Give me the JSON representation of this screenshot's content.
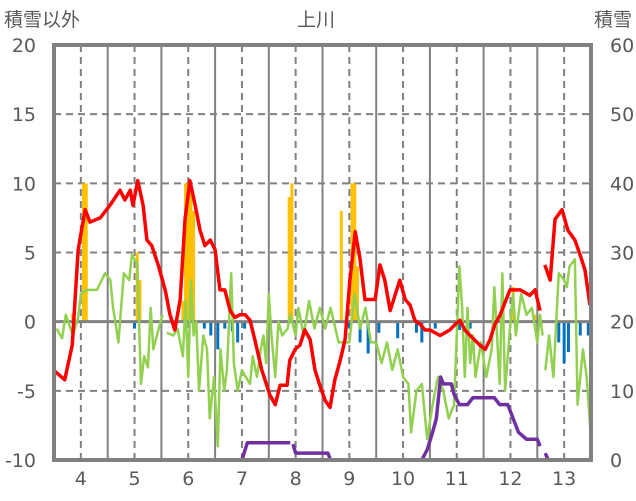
{
  "chart_data": {
    "type": "line",
    "title": "上川",
    "ylabel_left": "積雪以外",
    "ylabel_right": "積雪",
    "xlim": [
      3.5,
      13.5
    ],
    "ylim_left": [
      -10,
      20
    ],
    "ylim_right": [
      0,
      60
    ],
    "x_ticks": [
      4,
      5,
      6,
      7,
      8,
      9,
      10,
      11,
      12,
      13
    ],
    "y_ticks_left": [
      -10,
      -5,
      0,
      5,
      10,
      15,
      20
    ],
    "y_ticks_right": [
      0,
      10,
      20,
      30,
      40,
      50,
      60
    ],
    "grid": true,
    "colors": {
      "temp": "#ff0000",
      "green": "#92d050",
      "snow": "#7030a0",
      "precip": "#ffc000",
      "neg": "#0070c0",
      "axis": "#808080"
    },
    "series": [
      {
        "name": "red",
        "axis": "left",
        "segments": [
          [
            [
              3.52,
              -3.6
            ],
            [
              3.7,
              -4.2
            ],
            [
              3.84,
              -1.7
            ],
            [
              3.95,
              5.2
            ],
            [
              4.08,
              8.1
            ],
            [
              4.17,
              7.2
            ],
            [
              4.36,
              7.5
            ],
            [
              4.54,
              8.4
            ],
            [
              4.73,
              9.5
            ],
            [
              4.82,
              8.8
            ],
            [
              4.92,
              9.5
            ],
            [
              4.97,
              8.4
            ],
            [
              5.06,
              10.2
            ],
            [
              5.16,
              8.4
            ],
            [
              5.23,
              5.9
            ],
            [
              5.32,
              5.5
            ],
            [
              5.44,
              4.1
            ],
            [
              5.57,
              2.3
            ],
            [
              5.66,
              0.5
            ],
            [
              5.75,
              -0.6
            ],
            [
              5.85,
              1.6
            ],
            [
              5.94,
              7.4
            ],
            [
              6.03,
              10.2
            ],
            [
              6.13,
              8.4
            ],
            [
              6.22,
              6.6
            ],
            [
              6.31,
              5.5
            ],
            [
              6.41,
              5.9
            ],
            [
              6.5,
              5.2
            ],
            [
              6.59,
              2.3
            ],
            [
              6.68,
              2.3
            ],
            [
              6.78,
              0.8
            ],
            [
              6.87,
              0.3
            ],
            [
              6.96,
              0.5
            ],
            [
              7.06,
              0.5
            ],
            [
              7.15,
              0.1
            ],
            [
              7.24,
              -1.3
            ],
            [
              7.37,
              -3.5
            ],
            [
              7.52,
              -5.3
            ],
            [
              7.62,
              -6.0
            ],
            [
              7.71,
              -4.6
            ],
            [
              7.84,
              -4.6
            ],
            [
              7.89,
              -2.8
            ],
            [
              7.99,
              -2.0
            ],
            [
              8.08,
              -1.7
            ],
            [
              8.17,
              -0.6
            ],
            [
              8.27,
              -1.3
            ],
            [
              8.36,
              -3.5
            ],
            [
              8.45,
              -4.6
            ],
            [
              8.55,
              -5.7
            ],
            [
              8.64,
              -6.2
            ],
            [
              8.73,
              -4.2
            ],
            [
              8.83,
              -2.8
            ],
            [
              8.92,
              -1.3
            ],
            [
              9.01,
              3.0
            ],
            [
              9.11,
              6.5
            ],
            [
              9.2,
              4.5
            ],
            [
              9.29,
              1.6
            ],
            [
              9.38,
              1.6
            ],
            [
              9.48,
              1.6
            ],
            [
              9.57,
              4.1
            ],
            [
              9.66,
              3.0
            ],
            [
              9.76,
              0.8
            ],
            [
              9.85,
              1.9
            ],
            [
              9.94,
              3.0
            ],
            [
              10.04,
              1.6
            ],
            [
              10.13,
              1.2
            ],
            [
              10.22,
              0.1
            ],
            [
              10.32,
              -0.2
            ],
            [
              10.41,
              -0.6
            ],
            [
              10.5,
              -0.6
            ],
            [
              10.69,
              -1.0
            ],
            [
              10.87,
              -0.6
            ],
            [
              10.97,
              -0.2
            ],
            [
              11.06,
              0.1
            ],
            [
              11.15,
              -0.6
            ],
            [
              11.25,
              -1.0
            ],
            [
              11.43,
              -1.7
            ],
            [
              11.53,
              -2.0
            ],
            [
              11.62,
              -1.3
            ],
            [
              11.71,
              -0.2
            ],
            [
              11.81,
              0.5
            ],
            [
              11.99,
              2.3
            ],
            [
              12.18,
              2.3
            ],
            [
              12.36,
              1.9
            ],
            [
              12.46,
              2.3
            ],
            [
              12.55,
              0.8
            ]
          ],
          [
            [
              12.64,
              4.1
            ],
            [
              12.74,
              3.0
            ],
            [
              12.83,
              7.4
            ],
            [
              12.96,
              8.1
            ],
            [
              13.07,
              6.6
            ],
            [
              13.2,
              5.9
            ],
            [
              13.3,
              4.8
            ],
            [
              13.39,
              3.7
            ],
            [
              13.48,
              1.2
            ]
          ]
        ]
      },
      {
        "name": "green",
        "axis": "left",
        "segments": [
          [
            [
              3.55,
              -0.5
            ],
            [
              3.65,
              -1.2
            ],
            [
              3.72,
              0.5
            ],
            [
              3.85,
              -1
            ],
            [
              3.95,
              0.3
            ],
            [
              4.0,
              2
            ],
            [
              4.1,
              2.3
            ],
            [
              4.3,
              2.3
            ],
            [
              4.45,
              3.5
            ],
            [
              4.55,
              3.0
            ],
            [
              4.6,
              1
            ],
            [
              4.7,
              -1.5
            ],
            [
              4.8,
              3.5
            ],
            [
              4.9,
              3
            ],
            [
              4.95,
              4.8
            ],
            [
              5.05,
              4.2
            ],
            [
              5.12,
              -4.5
            ],
            [
              5.18,
              -2.5
            ],
            [
              5.25,
              -3.3
            ],
            [
              5.3,
              1
            ],
            [
              5.35,
              -2
            ],
            [
              5.45,
              -0.5
            ],
            [
              5.52,
              0.5
            ]
          ],
          [
            [
              5.6,
              -0.8
            ],
            [
              5.72,
              -1
            ],
            [
              5.8,
              -0.5
            ],
            [
              5.9,
              -2.5
            ],
            [
              5.95,
              1.5
            ],
            [
              6.0,
              -4
            ],
            [
              6.05,
              3
            ],
            [
              6.1,
              -1
            ],
            [
              6.15,
              0
            ],
            [
              6.2,
              -5
            ],
            [
              6.28,
              -1
            ],
            [
              6.35,
              -2
            ],
            [
              6.4,
              -7
            ],
            [
              6.48,
              -4
            ],
            [
              6.55,
              -9
            ],
            [
              6.6,
              -2
            ],
            [
              6.67,
              -5
            ],
            [
              6.72,
              -3.5
            ],
            [
              6.8,
              3.5
            ],
            [
              6.85,
              -3
            ],
            [
              6.92,
              -5
            ],
            [
              7.0,
              -3.5
            ],
            [
              7.07,
              -4
            ],
            [
              7.15,
              -4.5
            ],
            [
              7.2,
              -2.5
            ],
            [
              7.28,
              -4
            ],
            [
              7.35,
              -2
            ],
            [
              7.4,
              -1
            ],
            [
              7.45,
              -3
            ],
            [
              7.5,
              2
            ],
            [
              7.55,
              -1
            ],
            [
              7.62,
              -4
            ],
            [
              7.68,
              0
            ],
            [
              7.75,
              -1
            ],
            [
              7.85,
              -0.5
            ],
            [
              7.9,
              0.5
            ],
            [
              8.0,
              -1
            ],
            [
              8.05,
              1
            ],
            [
              8.15,
              -1
            ],
            [
              8.25,
              1.5
            ],
            [
              8.35,
              -0.5
            ],
            [
              8.45,
              1
            ],
            [
              8.55,
              -0.5
            ],
            [
              8.65,
              1
            ],
            [
              8.8,
              -1.5
            ],
            [
              8.9,
              -1.5
            ],
            [
              9.0,
              -1.5
            ],
            [
              9.1,
              2
            ],
            [
              9.2,
              -0.5
            ],
            [
              9.3,
              1
            ],
            [
              9.4,
              -1.5
            ],
            [
              9.5,
              -1.5
            ],
            [
              9.6,
              -3
            ],
            [
              9.7,
              -1.5
            ],
            [
              9.8,
              -3.5
            ],
            [
              9.9,
              -2
            ],
            [
              10.0,
              -4
            ],
            [
              10.1,
              -4.5
            ],
            [
              10.15,
              -8
            ],
            [
              10.25,
              -5
            ],
            [
              10.35,
              -4.5
            ],
            [
              10.45,
              -8.5
            ],
            [
              10.55,
              -6
            ],
            [
              10.65,
              -4
            ],
            [
              10.75,
              -5
            ],
            [
              10.85,
              -7
            ],
            [
              10.95,
              -6
            ],
            [
              11.05,
              4
            ],
            [
              11.1,
              1
            ],
            [
              11.15,
              -4
            ],
            [
              11.2,
              1
            ],
            [
              11.25,
              -3
            ],
            [
              11.3,
              -1
            ],
            [
              11.35,
              -4
            ],
            [
              11.45,
              -1.5
            ],
            [
              11.55,
              -4
            ],
            [
              11.65,
              -2
            ],
            [
              11.7,
              2.5
            ],
            [
              11.8,
              -4.5
            ],
            [
              11.85,
              3.5
            ],
            [
              11.9,
              -5
            ],
            [
              12.0,
              0
            ],
            [
              12.05,
              2
            ],
            [
              12.1,
              -1
            ],
            [
              12.2,
              2
            ],
            [
              12.3,
              0.5
            ],
            [
              12.4,
              1
            ],
            [
              12.5,
              -1.5
            ],
            [
              12.55,
              0.5
            ],
            [
              12.6,
              -1
            ]
          ],
          [
            [
              12.65,
              -3.5
            ],
            [
              12.72,
              -1
            ],
            [
              12.8,
              -4
            ],
            [
              12.9,
              3.5
            ],
            [
              13.0,
              3
            ],
            [
              13.05,
              2.5
            ],
            [
              13.1,
              4
            ],
            [
              13.2,
              4.5
            ],
            [
              13.25,
              -6
            ],
            [
              13.35,
              -2
            ],
            [
              13.42,
              -4
            ],
            [
              13.5,
              -8.5
            ]
          ]
        ]
      },
      {
        "name": "snow-depth",
        "axis": "right",
        "segments": [
          [
            [
              3.5,
              0
            ],
            [
              7.0,
              0
            ],
            [
              7.1,
              2.5
            ],
            [
              7.9,
              2.5
            ]
          ],
          [
            [
              7.95,
              2.3
            ],
            [
              8.0,
              1
            ],
            [
              8.6,
              1
            ],
            [
              8.65,
              0
            ],
            [
              10.35,
              0
            ],
            [
              10.45,
              1.5
            ],
            [
              10.55,
              4
            ],
            [
              10.62,
              6
            ],
            [
              10.7,
              12
            ],
            [
              10.75,
              11
            ],
            [
              10.9,
              11
            ],
            [
              10.95,
              9.5
            ],
            [
              11.05,
              8
            ],
            [
              11.2,
              8
            ],
            [
              11.3,
              9
            ],
            [
              11.7,
              9
            ],
            [
              11.8,
              8
            ],
            [
              11.95,
              8
            ],
            [
              12.05,
              6
            ],
            [
              12.15,
              4
            ],
            [
              12.3,
              3
            ],
            [
              12.5,
              3
            ],
            [
              12.55,
              2
            ]
          ],
          [
            [
              12.65,
              1
            ],
            [
              12.7,
              0
            ],
            [
              13.5,
              0
            ]
          ]
        ]
      }
    ],
    "bars_precip": [
      [
        3.85,
        0.6
      ],
      [
        4.05,
        10
      ],
      [
        4.1,
        10
      ],
      [
        5.05,
        5
      ],
      [
        5.1,
        3
      ],
      [
        5.95,
        10
      ],
      [
        6.0,
        10
      ],
      [
        6.05,
        10
      ],
      [
        6.1,
        8
      ],
      [
        5.9,
        1.5
      ],
      [
        7.88,
        9
      ],
      [
        7.93,
        10
      ],
      [
        8.85,
        8
      ],
      [
        9.05,
        10
      ],
      [
        9.1,
        10
      ],
      [
        9.15,
        4
      ],
      [
        12.05,
        2.5
      ],
      [
        12.45,
        0.5
      ]
    ],
    "bars_neg": [
      [
        5.0,
        -0.5
      ],
      [
        6.3,
        -0.5
      ],
      [
        6.42,
        -1
      ],
      [
        6.55,
        -2
      ],
      [
        6.68,
        -0.5
      ],
      [
        6.82,
        -0.7
      ],
      [
        6.92,
        -1.5
      ],
      [
        7.05,
        -0.5
      ],
      [
        9.0,
        -0.5
      ],
      [
        9.2,
        -1.5
      ],
      [
        9.35,
        -2.3
      ],
      [
        9.55,
        -0.8
      ],
      [
        9.9,
        -1.2
      ],
      [
        10.25,
        -0.8
      ],
      [
        10.35,
        -1.5
      ],
      [
        10.6,
        -0.5
      ],
      [
        11.05,
        -0.6
      ],
      [
        11.25,
        -0.5
      ],
      [
        12.9,
        -1.5
      ],
      [
        13.0,
        -3
      ],
      [
        13.08,
        -2.2
      ],
      [
        13.3,
        -1
      ],
      [
        13.45,
        -1
      ]
    ]
  }
}
